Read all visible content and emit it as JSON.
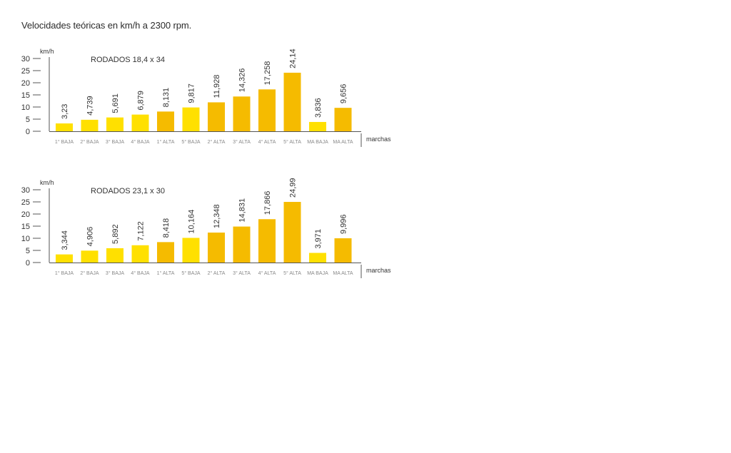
{
  "title": "Velocidades teóricas en km/h a 2300 rpm.",
  "colors": {
    "light": "#FFE000",
    "dark": "#F5BB00",
    "axis": "#555555",
    "tick_label": "#888888"
  },
  "chart_data": [
    {
      "type": "bar",
      "title": "RODADOS 18,4 x 34",
      "ylabel": "km/h",
      "xlabel": "marchas",
      "ylim": [
        0,
        30
      ],
      "yticks": [
        0,
        5,
        10,
        15,
        20,
        25,
        30
      ],
      "categories": [
        "1° BAJA",
        "2° BAJA",
        "3° BAJA",
        "4° BAJA",
        "1° ALTA",
        "5° BAJA",
        "2° ALTA",
        "3° ALTA",
        "4° ALTA",
        "5° ALTA",
        "MA BAJA",
        "MA ALTA"
      ],
      "values": [
        3.23,
        4.739,
        5.691,
        6.879,
        8.131,
        9.817,
        11.928,
        14.326,
        17.258,
        24.14,
        3.836,
        9.656
      ],
      "labels": [
        "3,23",
        "4,739",
        "5,691",
        "6,879",
        "8,131",
        "9,817",
        "11,928",
        "14,326",
        "17,258",
        "24,14",
        "3,836",
        "9,656"
      ],
      "bar_colors": [
        "light",
        "light",
        "light",
        "light",
        "dark",
        "light",
        "dark",
        "dark",
        "dark",
        "dark",
        "light",
        "dark"
      ]
    },
    {
      "type": "bar",
      "title": "RODADOS 23,1 x 30",
      "ylabel": "km/h",
      "xlabel": "marchas",
      "ylim": [
        0,
        30
      ],
      "yticks": [
        0,
        5,
        10,
        15,
        20,
        25,
        30
      ],
      "categories": [
        "1° BAJA",
        "2° BAJA",
        "3° BAJA",
        "4° BAJA",
        "1° ALTA",
        "5° BAJA",
        "2° ALTA",
        "3° ALTA",
        "4° ALTA",
        "5° ALTA",
        "MA BAJA",
        "MA ALTA"
      ],
      "values": [
        3.344,
        4.906,
        5.892,
        7.122,
        8.418,
        10.164,
        12.348,
        14.831,
        17.866,
        24.991,
        3.971,
        9.996
      ],
      "labels": [
        "3,344",
        "4,906",
        "5,892",
        "7,122",
        "8,418",
        "10,164",
        "12,348",
        "14,831",
        "17,866",
        "24,991",
        "3,971",
        "9,996"
      ],
      "bar_colors": [
        "light",
        "light",
        "light",
        "light",
        "dark",
        "light",
        "dark",
        "dark",
        "dark",
        "dark",
        "light",
        "dark"
      ]
    }
  ]
}
